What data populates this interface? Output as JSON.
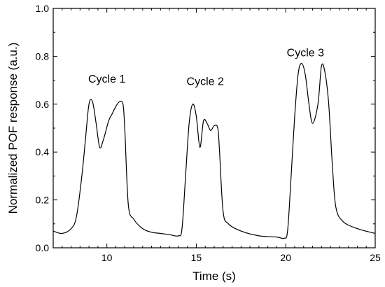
{
  "chart_data": {
    "type": "line",
    "title": "",
    "xlabel": "Time (s)",
    "ylabel": "Normalized POF response (a.u.)",
    "xlim": [
      7,
      25
    ],
    "ylim": [
      0.0,
      1.0
    ],
    "x_ticks": [
      10,
      15,
      20,
      25
    ],
    "x_tick_labels": [
      "10",
      "15",
      "20",
      "25"
    ],
    "y_ticks": [
      0.0,
      0.2,
      0.4,
      0.6,
      0.8,
      1.0
    ],
    "y_tick_labels": [
      "0.0",
      "0.2",
      "0.4",
      "0.6",
      "0.8",
      "1.0"
    ],
    "grid": false,
    "annotations": [
      {
        "text": "Cycle 1",
        "x": 10.0,
        "y": 0.69
      },
      {
        "text": "Cycle 2",
        "x": 15.5,
        "y": 0.68
      },
      {
        "text": "Cycle 3",
        "x": 21.1,
        "y": 0.8
      }
    ],
    "series": [
      {
        "color": "#000000",
        "x": [
          7.0,
          7.5,
          8.0,
          8.3,
          8.6,
          8.8,
          9.0,
          9.2,
          9.4,
          9.6,
          9.8,
          10.1,
          10.3,
          10.5,
          10.7,
          10.9,
          11.0,
          11.2,
          11.5,
          12.0,
          12.5,
          13.0,
          13.5,
          14.0,
          14.2,
          14.4,
          14.6,
          14.8,
          15.0,
          15.2,
          15.4,
          15.6,
          15.8,
          16.0,
          16.2,
          16.3,
          16.5,
          16.8,
          17.5,
          18.5,
          19.5,
          19.9,
          20.1,
          20.3,
          20.5,
          20.7,
          20.9,
          21.1,
          21.3,
          21.5,
          21.8,
          22.0,
          22.2,
          22.4,
          22.6,
          22.8,
          23.2,
          24.0,
          25.0
        ],
        "y": [
          0.07,
          0.06,
          0.08,
          0.13,
          0.3,
          0.45,
          0.6,
          0.61,
          0.52,
          0.42,
          0.45,
          0.53,
          0.56,
          0.59,
          0.61,
          0.6,
          0.5,
          0.18,
          0.12,
          0.08,
          0.065,
          0.06,
          0.055,
          0.05,
          0.08,
          0.3,
          0.52,
          0.6,
          0.55,
          0.42,
          0.53,
          0.52,
          0.49,
          0.51,
          0.5,
          0.4,
          0.15,
          0.1,
          0.07,
          0.05,
          0.045,
          0.04,
          0.07,
          0.3,
          0.55,
          0.73,
          0.77,
          0.72,
          0.6,
          0.52,
          0.6,
          0.76,
          0.73,
          0.6,
          0.35,
          0.17,
          0.11,
          0.08,
          0.06
        ]
      }
    ]
  }
}
